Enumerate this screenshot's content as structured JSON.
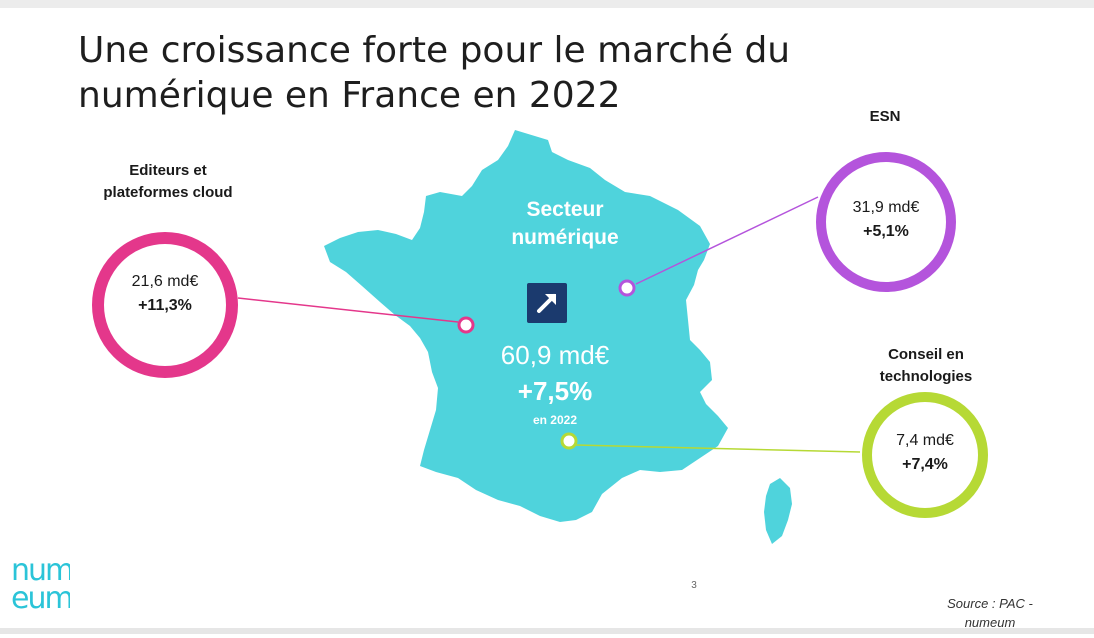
{
  "title": {
    "line1": "Une croissance forte pour le marché du",
    "line2": "numérique en France en 2022"
  },
  "sector": {
    "label_line1": "Secteur",
    "label_line2": "numérique",
    "value": "60,9 md€",
    "growth": "+7,5%",
    "year": "en 2022",
    "icon": "trend-up-arrow-icon"
  },
  "segments": {
    "editeurs": {
      "label_line1": "Editeurs et",
      "label_line2": "plateformes cloud",
      "value": "21,6 md€",
      "growth": "+11,3%",
      "color": "#e4378b"
    },
    "esn": {
      "label": "ESN",
      "value": "31,9 md€",
      "growth": "+5,1%",
      "color": "#b454dc"
    },
    "conseil": {
      "label_line1": "Conseil en",
      "label_line2": "technologies",
      "value": "7,4 md€",
      "growth": "+7,4%",
      "color": "#b6d935"
    }
  },
  "colors": {
    "map": "#4fd3dc",
    "badge": "#1b3a6e",
    "logo": "#2bc4d8"
  },
  "logo": {
    "line1": "num",
    "line2": "eum"
  },
  "page_number": "3",
  "source": {
    "line1": "Source : PAC -",
    "line2": "numeum"
  }
}
